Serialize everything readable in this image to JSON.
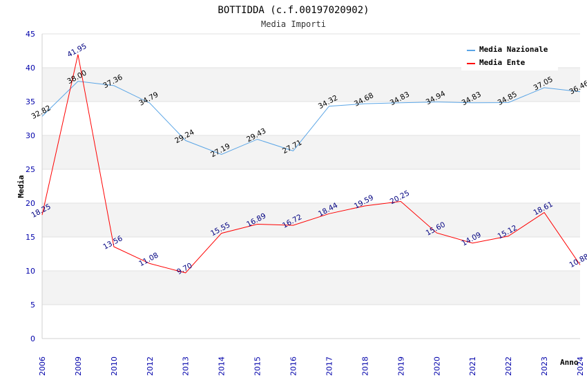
{
  "chart_data": {
    "type": "line",
    "title": "BOTTIDDA (c.f.00197020902)",
    "subtitle": "Media Importi",
    "xlabel": "Anno",
    "ylabel": "Media",
    "ylim": [
      0,
      45
    ],
    "yticks": [
      0,
      5,
      10,
      15,
      20,
      25,
      30,
      35,
      40,
      45
    ],
    "categories": [
      "2006",
      "2009",
      "2010",
      "2012",
      "2013",
      "2014",
      "2015",
      "2016",
      "2017",
      "2018",
      "2019",
      "2020",
      "2021",
      "2022",
      "2023",
      "2024"
    ],
    "legend_position": "top-right",
    "series": [
      {
        "name": "Media Nazionale",
        "color": "#5aa5e6",
        "values": [
          32.82,
          38.0,
          37.36,
          34.79,
          29.24,
          27.19,
          29.43,
          27.71,
          34.32,
          34.68,
          34.83,
          34.94,
          34.83,
          34.85,
          37.05,
          36.46
        ],
        "labels": [
          "32.82",
          "38.00",
          "37.36",
          "34.79",
          "29.24",
          "27.19",
          "29.43",
          "27.71",
          "34.32",
          "34.68",
          "34.83",
          "34.94",
          "34.83",
          "34.85",
          "37.05",
          "36.46"
        ]
      },
      {
        "name": "Media Ente",
        "color": "#ff0000",
        "values": [
          18.25,
          41.95,
          13.56,
          11.08,
          9.7,
          15.55,
          16.89,
          16.72,
          18.44,
          19.59,
          20.25,
          15.6,
          14.09,
          15.12,
          18.61,
          10.88
        ],
        "labels": [
          "18.25",
          "41.95",
          "13.56",
          "11.08",
          "9.70",
          "15.55",
          "16.89",
          "16.72",
          "18.44",
          "19.59",
          "20.25",
          "15.60",
          "14.09",
          "15.12",
          "18.61",
          "10.88"
        ]
      }
    ]
  }
}
